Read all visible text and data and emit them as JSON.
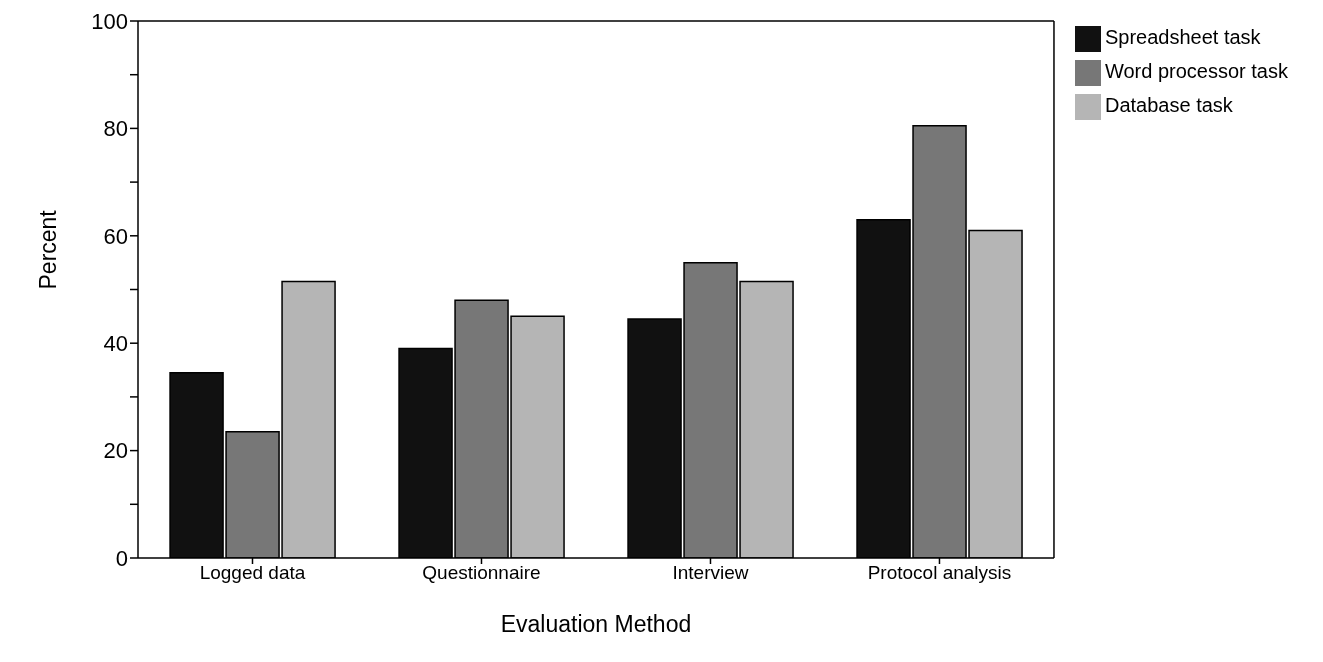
{
  "chart_data": {
    "type": "bar",
    "xlabel": "Evaluation Method",
    "ylabel": "Percent",
    "categories": [
      "Logged data",
      "Questionnaire",
      "Interview",
      "Protocol analysis"
    ],
    "series": [
      {
        "name": "Spreadsheet task",
        "color": "#111111",
        "values": [
          34.5,
          39,
          44.5,
          63
        ]
      },
      {
        "name": "Word processor task",
        "color": "#777777",
        "values": [
          23.5,
          48,
          55,
          80.5
        ]
      },
      {
        "name": "Database task",
        "color": "#b5b5b5",
        "values": [
          51.5,
          45,
          51.5,
          61
        ]
      }
    ],
    "ylim": [
      0,
      100
    ],
    "yticks": [
      0,
      {
        "value": 10,
        "label": null
      },
      20,
      {
        "value": 30,
        "label": null
      },
      40,
      {
        "value": 50,
        "label": null
      },
      60,
      {
        "value": 70,
        "label": null
      },
      80,
      {
        "value": 90,
        "label": null
      },
      100
    ],
    "grid": false,
    "legend": "top right"
  }
}
